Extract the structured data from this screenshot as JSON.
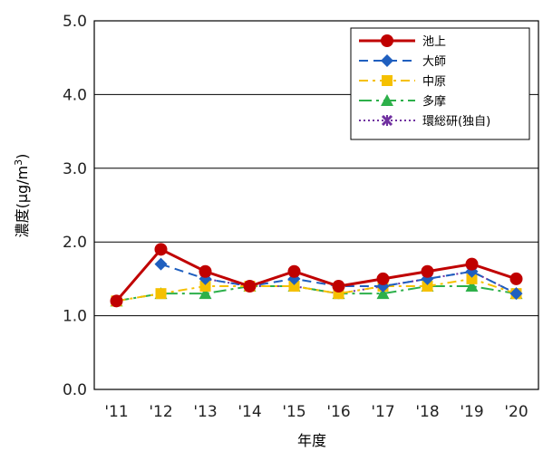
{
  "chart_data": {
    "type": "line",
    "xlabel": "年度",
    "ylabel": "濃度(μg/m³)",
    "ylabel_parts": {
      "prefix": "濃度(",
      "unit_mu": "μ",
      "unit_gm": "g/m",
      "unit_sup": "3",
      "suffix": ")"
    },
    "categories": [
      "'11",
      "'12",
      "'13",
      "'14",
      "'15",
      "'16",
      "'17",
      "'18",
      "'19",
      "'20"
    ],
    "ylim": [
      0,
      5
    ],
    "yticks": [
      "0.0",
      "1.0",
      "2.0",
      "3.0",
      "4.0",
      "5.0"
    ],
    "grid": true,
    "legend_position": "top-right",
    "series": [
      {
        "name": "池上",
        "color": "#c00000",
        "marker": "circle",
        "dash": "solid",
        "values": [
          1.2,
          1.9,
          1.6,
          1.4,
          1.6,
          1.4,
          1.5,
          1.6,
          1.7,
          1.5
        ]
      },
      {
        "name": "大師",
        "color": "#1f5fbf",
        "marker": "diamond",
        "dash": "dash",
        "values": [
          null,
          1.7,
          1.5,
          1.4,
          1.5,
          1.4,
          1.4,
          1.5,
          1.6,
          1.3
        ]
      },
      {
        "name": "中原",
        "color": "#f5c000",
        "marker": "square",
        "dash": "dashdot",
        "values": [
          1.2,
          1.3,
          1.4,
          1.4,
          1.4,
          1.3,
          1.4,
          1.4,
          1.5,
          1.3
        ]
      },
      {
        "name": "多摩",
        "color": "#2db04a",
        "marker": "triangle",
        "dash": "longdashdot",
        "values": [
          1.2,
          1.3,
          1.3,
          1.4,
          1.4,
          1.3,
          1.3,
          1.4,
          1.4,
          1.3
        ]
      },
      {
        "name": "環総研(独自)",
        "color": "#7030a0",
        "marker": "x",
        "dash": "dot",
        "values": [
          null,
          null,
          1.5,
          1.4,
          1.4,
          1.3,
          1.4,
          1.5,
          1.6,
          1.3
        ]
      }
    ]
  }
}
